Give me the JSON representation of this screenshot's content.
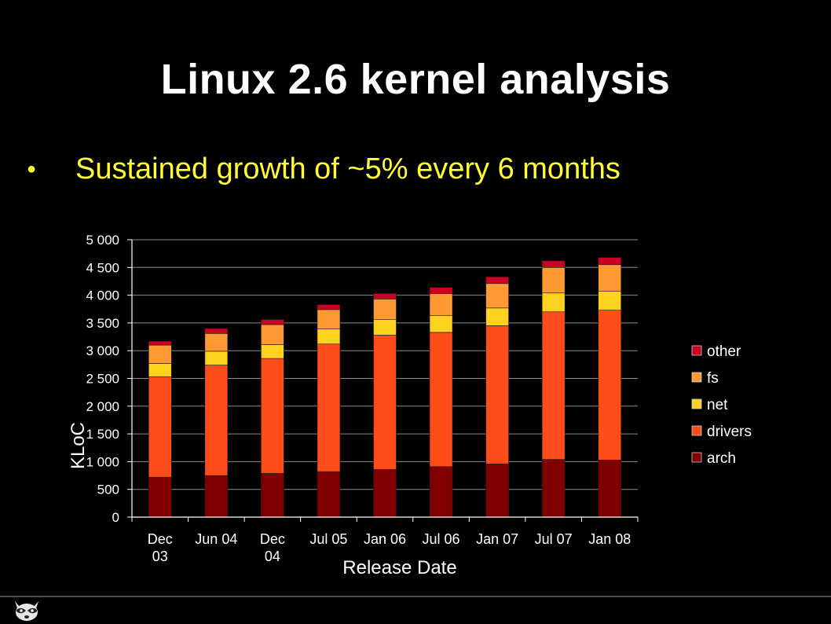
{
  "slide": {
    "title": "Linux 2.6 kernel analysis",
    "bullet": "Sustained growth of ~5% every 6 months"
  },
  "colors": {
    "background": "#000000",
    "title": "#ffffff",
    "bullet": "#ffff33",
    "axis": "#ffffff"
  },
  "chart_data": {
    "type": "bar",
    "stacked": true,
    "title": "",
    "xlabel": "Release Date",
    "ylabel": "KLoC",
    "ylim": [
      0,
      5000
    ],
    "yticks": [
      0,
      500,
      1000,
      1500,
      2000,
      2500,
      3000,
      3500,
      4000,
      4500,
      5000
    ],
    "ytick_labels": [
      "0",
      "500",
      "1 000",
      "1 500",
      "2 000",
      "2 500",
      "3 000",
      "3 500",
      "4 000",
      "4 500",
      "5 000"
    ],
    "categories": [
      "Dec 03",
      "Jun 04",
      "Dec 04",
      "Jul 05",
      "Jan 06",
      "Jul 06",
      "Jan 07",
      "Jul 07",
      "Jan 08"
    ],
    "category_lines": [
      [
        "Dec",
        "03"
      ],
      [
        "Jun 04"
      ],
      [
        "Dec",
        "04"
      ],
      [
        "Jul 05"
      ],
      [
        "Jan 06"
      ],
      [
        "Jul 06"
      ],
      [
        "Jan 07"
      ],
      [
        "Jul 07"
      ],
      [
        "Jan 08"
      ]
    ],
    "legend_position": "right",
    "series": [
      {
        "name": "arch",
        "color": "#800000",
        "values": [
          720,
          750,
          790,
          820,
          860,
          910,
          960,
          1040,
          1030
        ]
      },
      {
        "name": "drivers",
        "color": "#ff4d1a",
        "values": [
          1810,
          1990,
          2070,
          2300,
          2420,
          2420,
          2490,
          2660,
          2700
        ]
      },
      {
        "name": "net",
        "color": "#ffd21f",
        "values": [
          240,
          250,
          250,
          270,
          280,
          300,
          320,
          340,
          340
        ]
      },
      {
        "name": "fs",
        "color": "#ff9933",
        "values": [
          330,
          320,
          360,
          350,
          370,
          400,
          440,
          460,
          480
        ]
      },
      {
        "name": "other",
        "color": "#cc0022",
        "values": [
          70,
          90,
          90,
          90,
          100,
          110,
          120,
          120,
          130
        ]
      }
    ],
    "legend_order": [
      "other",
      "fs",
      "net",
      "drivers",
      "arch"
    ]
  }
}
